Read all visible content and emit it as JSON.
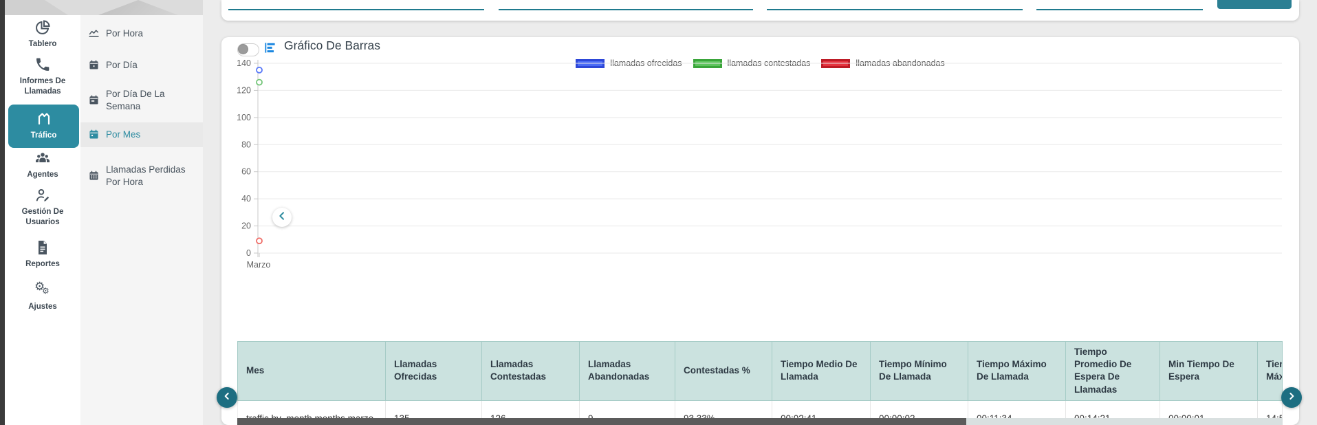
{
  "accent": "#2d8ca1",
  "accent_dark": "#1d6e81",
  "sidebar": {
    "items": [
      {
        "label": "Tablero",
        "icon": "pie-chart",
        "active": false
      },
      {
        "label": "Informes De Llamadas",
        "icon": "phone",
        "active": false
      },
      {
        "label": "Tráfico",
        "icon": "area-chart",
        "active": true
      },
      {
        "label": "Agentes",
        "icon": "users-group",
        "active": false
      },
      {
        "label": "Gestión De Usuarios",
        "icon": "user-edit",
        "active": false
      },
      {
        "label": "Reportes",
        "icon": "document",
        "active": false
      },
      {
        "label": "Ajustes",
        "icon": "gears",
        "active": false
      }
    ]
  },
  "submenu": {
    "items": [
      {
        "label": "Por Hora",
        "icon": "line-chart",
        "active": false
      },
      {
        "label": "Por Día",
        "icon": "calendar",
        "active": false
      },
      {
        "label": "Por Día De La Semana",
        "icon": "calendar-day",
        "active": false
      },
      {
        "label": "Por Mes",
        "icon": "calendar-month",
        "active": true
      },
      {
        "label": "Llamadas Perdidas Por Hora",
        "icon": "calendar-grid",
        "active": false
      }
    ],
    "collapse_icon": "chevron-left-icon"
  },
  "filters": {
    "inputs": [
      {
        "value": "",
        "placeholder": ""
      },
      {
        "value": "",
        "placeholder": ""
      },
      {
        "value": "",
        "placeholder": ""
      },
      {
        "value": "",
        "placeholder": ""
      }
    ],
    "submit_label": ""
  },
  "chart": {
    "title": "Gráfico De Barras",
    "toggle_on": false,
    "legend": [
      {
        "label": "llamadas ofrecidas",
        "fill": "#4a6bf5",
        "border": "#2d47d8"
      },
      {
        "label": "llamadas contestadas",
        "fill": "#5ec45e",
        "border": "#3aa53a"
      },
      {
        "label": "llamadas abandonadas",
        "fill": "#e5333f",
        "border": "#bd1b26"
      }
    ],
    "chart_data": {
      "type": "scatter",
      "categories": [
        "Marzo"
      ],
      "series": [
        {
          "name": "llamadas ofrecidas",
          "color": "#5a7af8",
          "values": [
            135
          ]
        },
        {
          "name": "llamadas contestadas",
          "color": "#73c578",
          "values": [
            126
          ]
        },
        {
          "name": "llamadas abandonadas",
          "color": "#ef6e68",
          "values": [
            9
          ]
        }
      ],
      "title": "Gráfico De Barras",
      "xlabel": "",
      "ylabel": "",
      "ylim": [
        0,
        140
      ],
      "yticks": [
        0,
        20,
        40,
        60,
        80,
        100,
        120,
        140
      ],
      "grid": true,
      "legend_position": "top"
    }
  },
  "table": {
    "headers": [
      "Mes",
      "Llamadas Ofrecidas",
      "Llamadas Contestadas",
      "Llamadas Abandonadas",
      "Contestadas %",
      "Tiempo Medio De Llamada",
      "Tiempo Mínimo De Llamada",
      "Tiempo Máximo De Llamada",
      "Tiempo Promedio De Espera De Llamadas",
      "Min Tiempo De Espera",
      "Tiempo Máximo"
    ],
    "rows": [
      [
        "traffic.by_month.months.marzo",
        "135",
        "126",
        "9",
        "93.33%",
        "00:02:41",
        "00:00:02",
        "00:11:34",
        "00:14:21",
        "00:00:01",
        "14:5"
      ]
    ]
  }
}
